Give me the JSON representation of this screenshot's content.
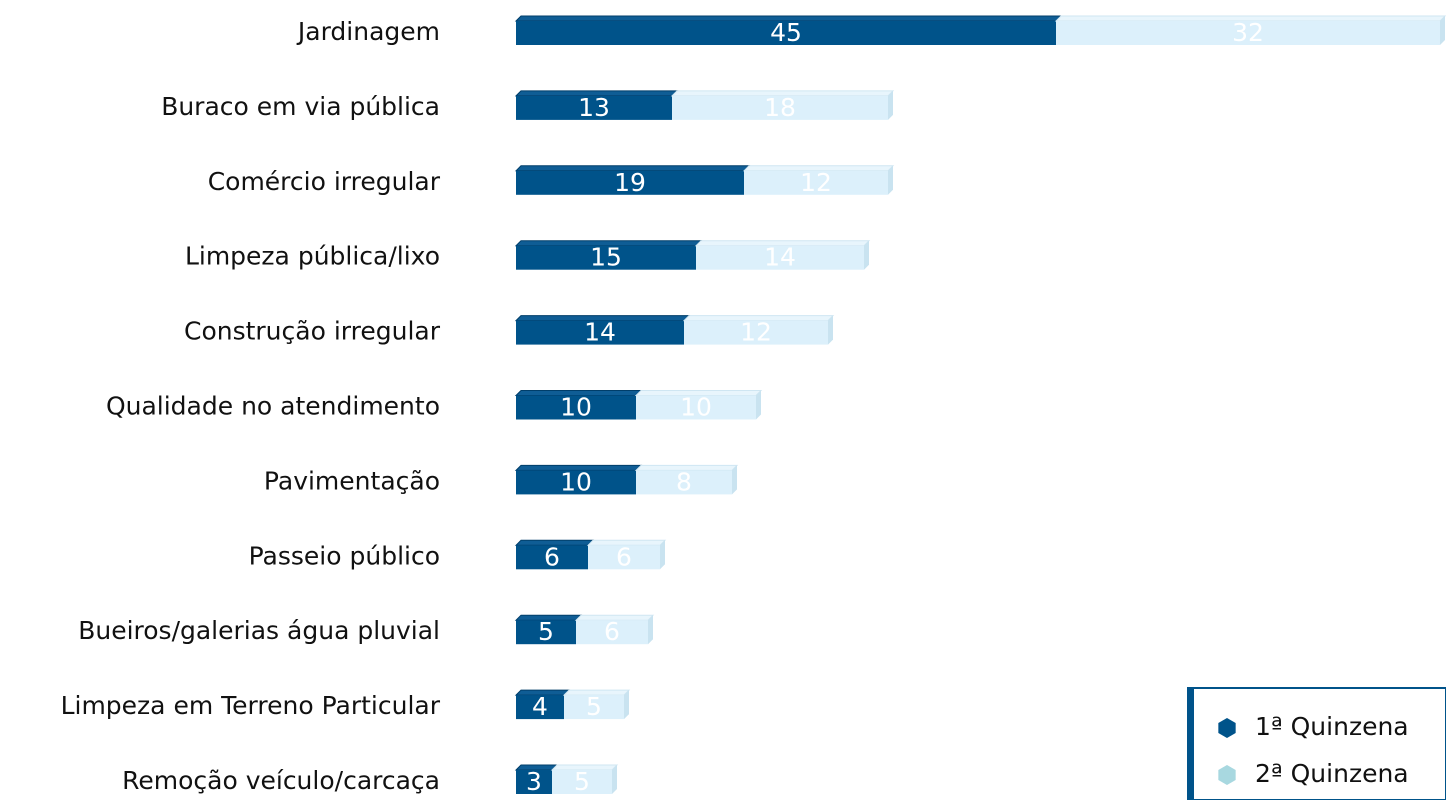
{
  "chart_data": {
    "type": "stacked-bar-horizontal",
    "categories": [
      "Jardinagem",
      "Buraco em via pública",
      "Comércio irregular",
      "Limpeza pública/lixo",
      "Construção irregular",
      "Qualidade no atendimento",
      "Pavimentação",
      "Passeio público",
      "Bueiros/galerias água pluvial",
      "Limpeza em Terreno Particular",
      "Remoção veículo/carcaça"
    ],
    "series": [
      {
        "name": "1ª Quinzena",
        "color": "#00538a",
        "values": [
          45,
          13,
          19,
          15,
          14,
          10,
          10,
          6,
          5,
          4,
          3
        ]
      },
      {
        "name": "2ª Quinzena",
        "color": "#dcf0fb",
        "values": [
          32,
          18,
          12,
          14,
          12,
          10,
          8,
          6,
          6,
          5,
          5
        ]
      }
    ],
    "legend": "bottom-right"
  }
}
